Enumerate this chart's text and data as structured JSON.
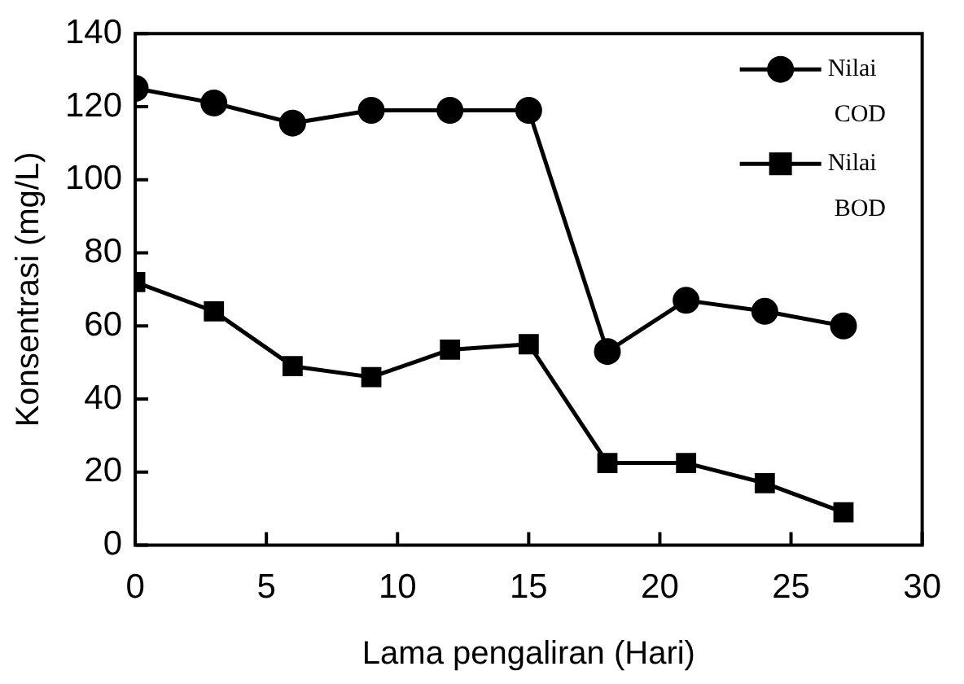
{
  "chart_data": {
    "type": "line",
    "xlabel": "Lama pengaliran (Hari)",
    "ylabel": "Konsentrasi (mg/L)",
    "x": [
      0,
      3,
      6,
      9,
      12,
      15,
      18,
      21,
      24,
      27
    ],
    "series": [
      {
        "name": "Nilai COD",
        "color": "#000000",
        "marker": "circle",
        "values": [
          125,
          121,
          115.5,
          119,
          119,
          119,
          53,
          67,
          64,
          60
        ]
      },
      {
        "name": "Nilai BOD",
        "color": "#000000",
        "marker": "square",
        "values": [
          72,
          64,
          49,
          46,
          53.5,
          55,
          22.5,
          22.5,
          17,
          9
        ]
      }
    ],
    "xlim": [
      0,
      30
    ],
    "xticks": [
      0,
      5,
      10,
      15,
      20,
      25,
      30
    ],
    "ylim": [
      0,
      140
    ],
    "yticks": [
      0,
      20,
      40,
      60,
      80,
      100,
      120,
      140
    ],
    "grid": false,
    "legend": "top right",
    "line_style": "solid"
  }
}
